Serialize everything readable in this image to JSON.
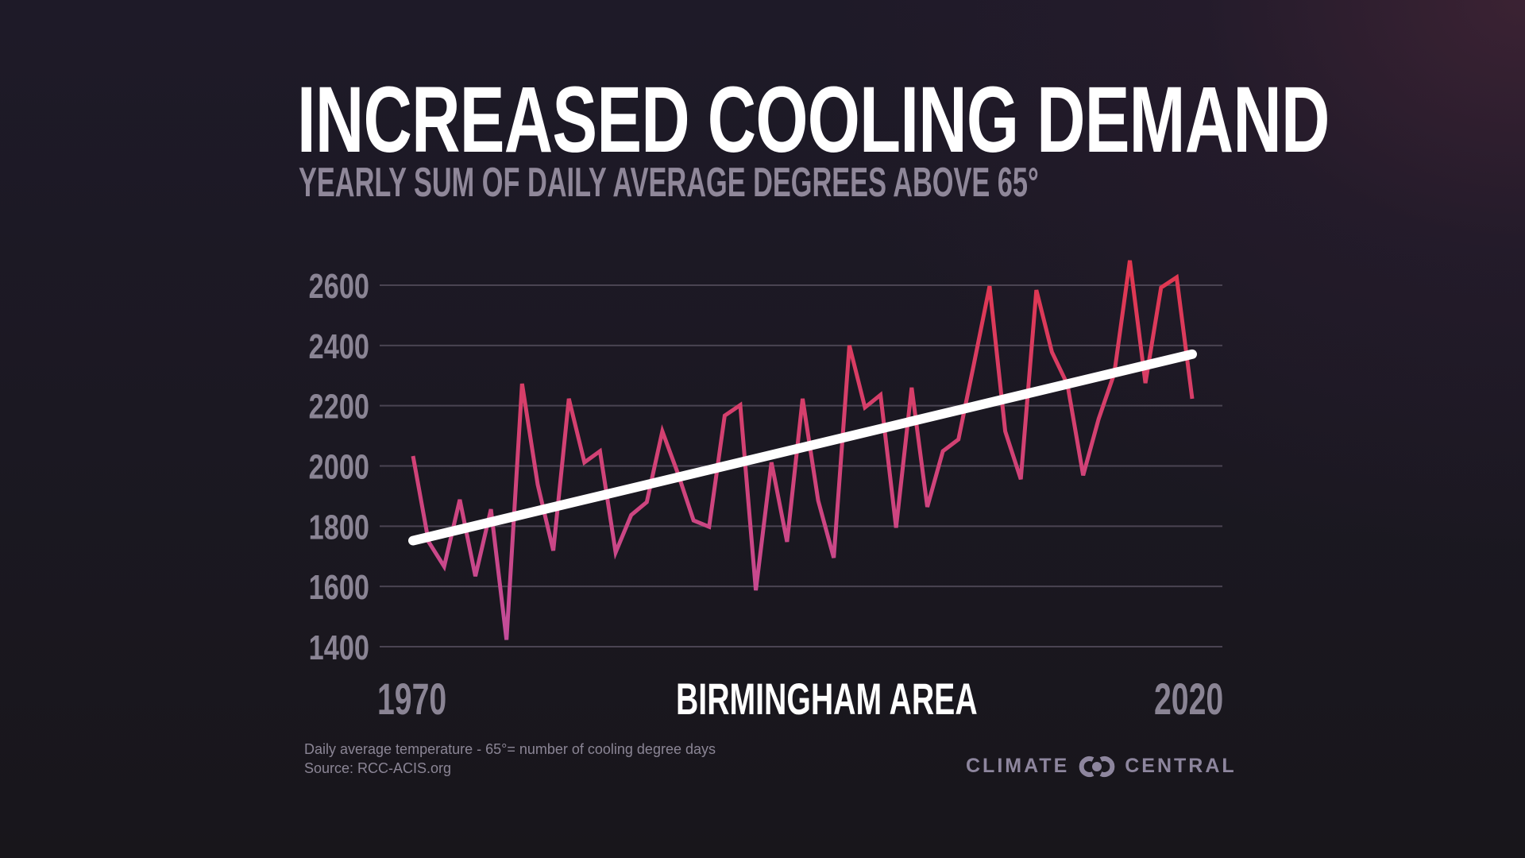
{
  "title": "INCREASED COOLING DEMAND",
  "subtitle": "YEARLY SUM OF DAILY AVERAGE DEGREES ABOVE 65°",
  "footnote": {
    "line1": "Daily average temperature - 65°= number of cooling degree days",
    "line2": "Source:  RCC-ACIS.org"
  },
  "logo": {
    "left": "CLIMATE",
    "right": "CENTRAL"
  },
  "chart_data": {
    "type": "line",
    "title": "INCREASED COOLING DEMAND",
    "subtitle": "YEARLY SUM OF DAILY AVERAGE DEGREES ABOVE 65°",
    "xlabel": "BIRMINGHAM AREA",
    "x_tick_labels": [
      "1970",
      "2020"
    ],
    "y_tick_labels": [
      "1400",
      "1600",
      "1800",
      "2000",
      "2200",
      "2400",
      "2600"
    ],
    "xlim": [
      1970,
      2020
    ],
    "ylim": [
      1400,
      2600
    ],
    "grid": true,
    "colors": {
      "line_low": "#c24d9c",
      "line_high": "#e2364c",
      "trend": "#ffffff",
      "grid": "#4a4452",
      "ticks": "#8a8494"
    },
    "x": [
      1970,
      1971,
      1972,
      1973,
      1974,
      1975,
      1976,
      1977,
      1978,
      1979,
      1980,
      1981,
      1982,
      1983,
      1984,
      1985,
      1986,
      1987,
      1988,
      1989,
      1990,
      1991,
      1992,
      1993,
      1994,
      1995,
      1996,
      1997,
      1998,
      1999,
      2000,
      2001,
      2002,
      2003,
      2004,
      2005,
      2006,
      2007,
      2008,
      2009,
      2010,
      2011,
      2012,
      2013,
      2014,
      2015,
      2016,
      2017,
      2018,
      2019,
      2020
    ],
    "series": [
      {
        "values": [
          2033,
          1748,
          1666,
          1888,
          1634,
          1856,
          1423,
          2273,
          1938,
          1719,
          2223,
          2012,
          2049,
          1713,
          1837,
          1880,
          2115,
          1975,
          1819,
          1798,
          2167,
          2202,
          1587,
          2012,
          1748,
          2223,
          1885,
          1695,
          2400,
          2194,
          2236,
          1795,
          2260,
          1864,
          2049,
          2088,
          2340,
          2597,
          2115,
          1956,
          2584,
          2378,
          2270,
          1969,
          2157,
          2307,
          2682,
          2275,
          2592,
          2626,
          2223
        ]
      }
    ],
    "trend": {
      "start": [
        1970,
        1752
      ],
      "end": [
        2020,
        2371
      ]
    }
  }
}
